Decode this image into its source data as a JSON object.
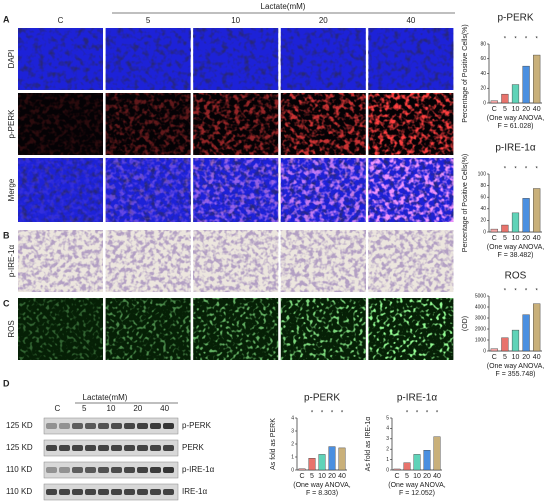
{
  "panel_letters": [
    "A",
    "B",
    "C",
    "D"
  ],
  "header": {
    "treatment": "Lactate(mM)",
    "columns": [
      "C",
      "5",
      "10",
      "20",
      "40"
    ]
  },
  "row_labels": [
    "DAPI",
    "p-PERK",
    "Merge",
    "p-IRE-1α",
    "ROS"
  ],
  "blot": {
    "treatment": "Lactate(mM)",
    "lanes": [
      "C",
      "5",
      "10",
      "20",
      "40"
    ],
    "bands": [
      {
        "size": "125 KD",
        "label": "p-PERK"
      },
      {
        "size": "125 KD",
        "label": "PERK"
      },
      {
        "size": "110 KD",
        "label": "p-IRE-1α"
      },
      {
        "size": "110 KD",
        "label": "IRE-1α"
      }
    ]
  },
  "chart_data": [
    {
      "type": "bar",
      "title": "p-PERK",
      "ylabel": "Percentage of Positive Cells(%)",
      "categories": [
        "C",
        "5",
        "10",
        "20",
        "40"
      ],
      "values": [
        3,
        12,
        25,
        50,
        65
      ],
      "colors": [
        "#f4a6a6",
        "#e8736c",
        "#5fd3b8",
        "#4a8fe0",
        "#c9b07a"
      ],
      "ylim": [
        0,
        80
      ],
      "yticks": [
        0,
        20,
        40,
        60,
        80
      ],
      "significance": [
        null,
        "*",
        "*",
        "*",
        "*"
      ],
      "note": [
        "(One way ANOVA,",
        "F = 61.028)"
      ]
    },
    {
      "type": "bar",
      "title": "p-IRE-1α",
      "ylabel": "Percentage of Positive Cells(%)",
      "categories": [
        "C",
        "5",
        "10",
        "20",
        "40"
      ],
      "values": [
        5,
        12,
        33,
        58,
        75
      ],
      "colors": [
        "#f4a6a6",
        "#e8736c",
        "#5fd3b8",
        "#4a8fe0",
        "#c9b07a"
      ],
      "ylim": [
        0,
        100
      ],
      "yticks": [
        0,
        20,
        40,
        60,
        80,
        100
      ],
      "significance": [
        null,
        "*",
        "*",
        "*",
        "*"
      ],
      "note": [
        "(One way ANOVA,",
        "F = 38.482)"
      ]
    },
    {
      "type": "bar",
      "title": "ROS",
      "ylabel": "(OD)",
      "categories": [
        "C",
        "5",
        "10",
        "20",
        "40"
      ],
      "values": [
        200,
        1200,
        1900,
        3300,
        4300
      ],
      "colors": [
        "#f4a6a6",
        "#e8736c",
        "#5fd3b8",
        "#4a8fe0",
        "#c9b07a"
      ],
      "ylim": [
        0,
        5000
      ],
      "yticks": [
        0,
        1000,
        2000,
        3000,
        4000,
        5000
      ],
      "significance": [
        null,
        "*",
        "*",
        "*",
        "*"
      ],
      "note": [
        "(One way ANOVA,",
        "F = 355.748)"
      ]
    },
    {
      "type": "bar",
      "title": "p-PERK",
      "ylabel": "As fold as PERK",
      "categories": [
        "C",
        "5",
        "10",
        "20",
        "40"
      ],
      "values": [
        0.1,
        0.9,
        1.2,
        1.8,
        1.7
      ],
      "colors": [
        "#f4a6a6",
        "#e8736c",
        "#5fd3b8",
        "#4a8fe0",
        "#c9b07a"
      ],
      "ylim": [
        0,
        4
      ],
      "yticks": [
        0,
        1,
        2,
        3,
        4
      ],
      "significance": [
        null,
        "*",
        "*",
        "*",
        "*"
      ],
      "note": [
        "(One way ANOVA,",
        "F = 8.303)"
      ]
    },
    {
      "type": "bar",
      "title": "p-IRE-1α",
      "ylabel": "As fold as IRE-1α",
      "categories": [
        "C",
        "5",
        "10",
        "20",
        "40"
      ],
      "values": [
        0.1,
        0.7,
        1.5,
        1.9,
        3.2
      ],
      "colors": [
        "#f4a6a6",
        "#e8736c",
        "#5fd3b8",
        "#4a8fe0",
        "#c9b07a"
      ],
      "ylim": [
        0,
        5
      ],
      "yticks": [
        0,
        1,
        2,
        3,
        4,
        5
      ],
      "significance": [
        null,
        "*",
        "*",
        "*",
        "*"
      ],
      "note": [
        "(One way ANOVA,",
        "F = 12.052)"
      ]
    }
  ]
}
